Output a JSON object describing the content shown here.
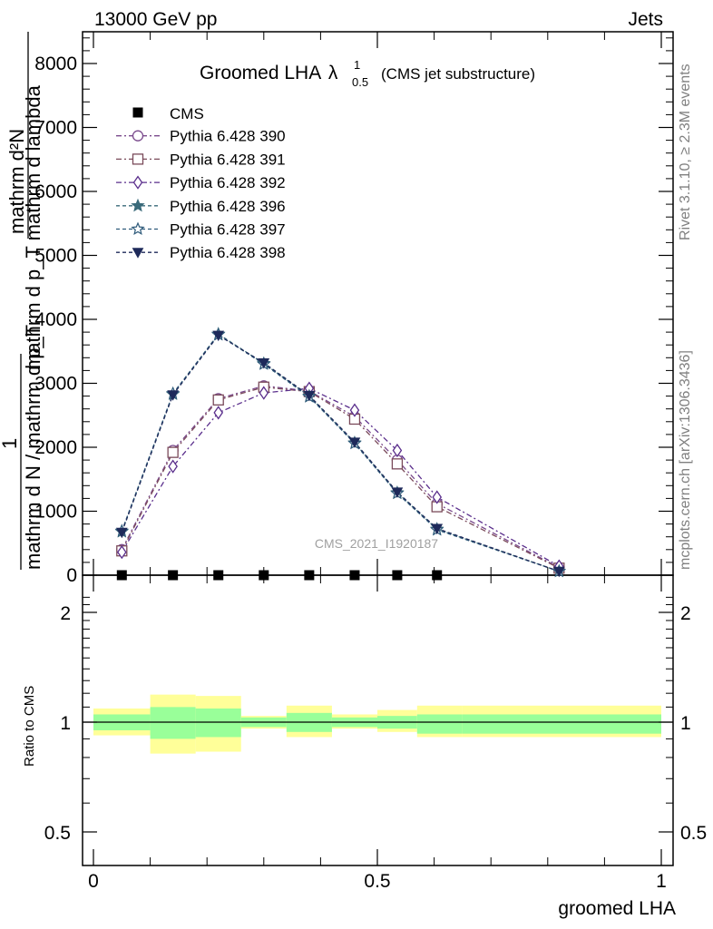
{
  "header": {
    "energy_label": "13000 GeV pp",
    "process_label": "Jets"
  },
  "side_labels": {
    "rivet": "Rivet 3.1.10, ≥ 2.3M events",
    "mcplots": "mcplots.cern.ch [arXiv:1306.3436]"
  },
  "watermark": "CMS_2021_I1920187",
  "chart_data": {
    "type": "line",
    "title": "Groomed LHA",
    "title_symbol": "λ",
    "title_sup": "1",
    "title_sub": "0.5",
    "subtitle": "(CMS jet substructure)",
    "ylabel_top_num": "mathrm d²N",
    "ylabel_top_den": "mathrm d p_T mathrm d lambda",
    "ylabel_one": "1",
    "ylabel_bottom": "mathrm d N / mathrm d p_T",
    "xlabel": "groomed LHA",
    "ratio_ylabel": "Ratio to CMS",
    "xlim": [
      0,
      1
    ],
    "ylim": [
      0,
      8500
    ],
    "ratio_ylim": [
      0.4,
      2.3
    ],
    "main_yticks": [
      0,
      1000,
      2000,
      3000,
      4000,
      5000,
      6000,
      7000,
      8000
    ],
    "main_ytick_labels": [
      "0",
      "1000",
      "2000",
      "3000",
      "4000",
      "5000",
      "6000",
      "7000",
      "8000"
    ],
    "ratio_yticks": [
      0.5,
      1,
      2
    ],
    "ratio_ytick_labels": [
      "0.5",
      "1",
      "2"
    ],
    "xticks": [
      0,
      0.5,
      1
    ],
    "xtick_labels": [
      "0",
      "0.5",
      "1"
    ],
    "legend_position": "top-left",
    "cms": {
      "name": "CMS",
      "x": [
        0.05,
        0.14,
        0.22,
        0.3,
        0.38,
        0.46,
        0.535,
        0.605
      ],
      "values": [
        0,
        0,
        0,
        0,
        0,
        0,
        0,
        0
      ]
    },
    "x": [
      0.05,
      0.14,
      0.22,
      0.3,
      0.38,
      0.46,
      0.535,
      0.605,
      0.82
    ],
    "series": [
      {
        "name": "Pythia 6.428 390",
        "color": "#7a4a8c",
        "marker": "circle-open",
        "values": [
          400,
          1950,
          2760,
          2960,
          2880,
          2480,
          1800,
          1120,
          120
        ]
      },
      {
        "name": "Pythia 6.428 391",
        "color": "#7a4a5a",
        "marker": "square-open",
        "values": [
          380,
          1920,
          2740,
          2940,
          2870,
          2440,
          1740,
          1070,
          110
        ]
      },
      {
        "name": "Pythia 6.428 392",
        "color": "#5a2e8c",
        "marker": "diamond-open",
        "values": [
          360,
          1700,
          2540,
          2850,
          2920,
          2580,
          1950,
          1220,
          140
        ]
      },
      {
        "name": "Pythia 6.428 396",
        "color": "#3a6a7a",
        "marker": "star-filled",
        "values": [
          680,
          2830,
          3770,
          3310,
          2800,
          2070,
          1290,
          720,
          60
        ]
      },
      {
        "name": "Pythia 6.428 397",
        "color": "#2e5a7a",
        "marker": "star-open",
        "values": [
          690,
          2840,
          3760,
          3300,
          2790,
          2060,
          1280,
          710,
          60
        ]
      },
      {
        "name": "Pythia 6.428 398",
        "color": "#1e2a5a",
        "marker": "triangle-down-filled",
        "values": [
          670,
          2820,
          3750,
          3320,
          2810,
          2080,
          1300,
          730,
          60
        ]
      }
    ],
    "ratio_bands": {
      "x_edges": [
        0,
        0.1,
        0.18,
        0.26,
        0.34,
        0.42,
        0.5,
        0.57,
        0.65,
        1.0
      ],
      "inner_lo": [
        0.95,
        0.9,
        0.91,
        0.97,
        0.94,
        0.97,
        0.96,
        0.93,
        0.93
      ],
      "inner_hi": [
        1.05,
        1.1,
        1.09,
        1.03,
        1.06,
        1.03,
        1.04,
        1.05,
        1.05
      ],
      "outer_lo": [
        0.92,
        0.82,
        0.83,
        0.96,
        0.91,
        0.96,
        0.94,
        0.91,
        0.91
      ],
      "outer_hi": [
        1.09,
        1.19,
        1.18,
        1.04,
        1.11,
        1.05,
        1.08,
        1.11,
        1.11
      ]
    }
  }
}
